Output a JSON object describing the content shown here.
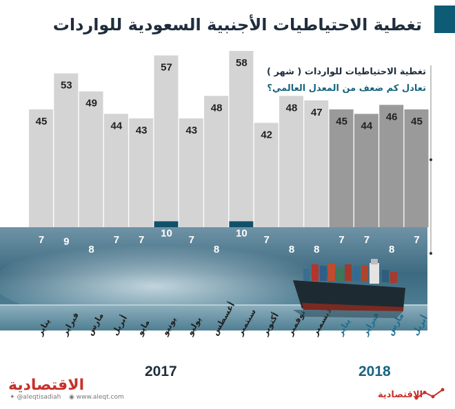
{
  "title": "تغطية الاحتياطيات الأجنبية السعودية للواردات",
  "legend": {
    "months_label": "تغطية الاحتياطيات للواردات ( شهر )",
    "ratio_label": "تعادل كم ضعف من المعدل العالمي؟"
  },
  "years": {
    "y2017": "2017",
    "y2018": "2018"
  },
  "footer": {
    "brand": "الاقتصادية",
    "twitter": "@aleqtisadiah",
    "website": "www.aleqt.com"
  },
  "colors": {
    "accent": "#0e5b76",
    "bar_2017": "#d4d4d4",
    "bar_2018": "#9a9a9a",
    "highlight": "#10506a",
    "month_2018": "#1f6d8c",
    "brand_red": "#c6312b"
  },
  "chart_data": {
    "type": "bar",
    "title": "تغطية الاحتياطيات الأجنبية السعودية للواردات",
    "categories": [
      "يناير",
      "فبراير",
      "مارس",
      "أبريل",
      "مايو",
      "يونيو",
      "يوليو",
      "أغسطس",
      "سبتمبر",
      "أكتوبر",
      "نوفمبر",
      "ديسمبر",
      "يناير",
      "فبراير",
      "مارس",
      "أبريل"
    ],
    "year_groups": [
      {
        "year": "2017",
        "count": 12
      },
      {
        "year": "2018",
        "count": 4
      }
    ],
    "series": [
      {
        "name": "تغطية الاحتياطيات للواردات ( شهر )",
        "values": [
          45,
          53,
          49,
          44,
          43,
          57,
          43,
          48,
          58,
          42,
          48,
          47,
          45,
          44,
          46,
          45
        ]
      },
      {
        "name": "تعادل كم ضعف من المعدل العالمي؟",
        "values": [
          7,
          9,
          8,
          7,
          7,
          10,
          7,
          8,
          10,
          7,
          8,
          8,
          7,
          7,
          8,
          7
        ]
      }
    ],
    "ylim": [
      0,
      60
    ],
    "xlabel": "",
    "ylabel": "",
    "grid": false,
    "legend_position": "top-right"
  }
}
